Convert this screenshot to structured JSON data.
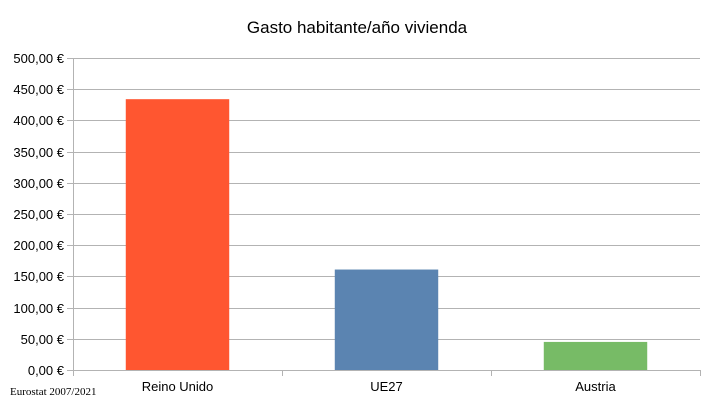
{
  "chart_data": {
    "type": "bar",
    "title": "Gasto habitante/año vivienda",
    "categories": [
      "Reino Unido",
      "UE27",
      "Austria"
    ],
    "values": [
      434,
      161,
      45
    ],
    "colors": [
      "#ff5630",
      "#5b84b1",
      "#77bb66"
    ],
    "ylim": [
      0,
      500
    ],
    "y_ticks": [
      0,
      50,
      100,
      150,
      200,
      250,
      300,
      350,
      400,
      450,
      500
    ],
    "y_tick_labels": [
      "0,00 €",
      "50,00 €",
      "100,00 €",
      "150,00 €",
      "200,00 €",
      "250,00 €",
      "300,00 €",
      "350,00 €",
      "400,00 €",
      "450,00 €",
      "500,00 €"
    ],
    "grid": true,
    "legend": "none",
    "xlabel": "",
    "ylabel": ""
  },
  "source_note": "Eurostat 2007/2021"
}
